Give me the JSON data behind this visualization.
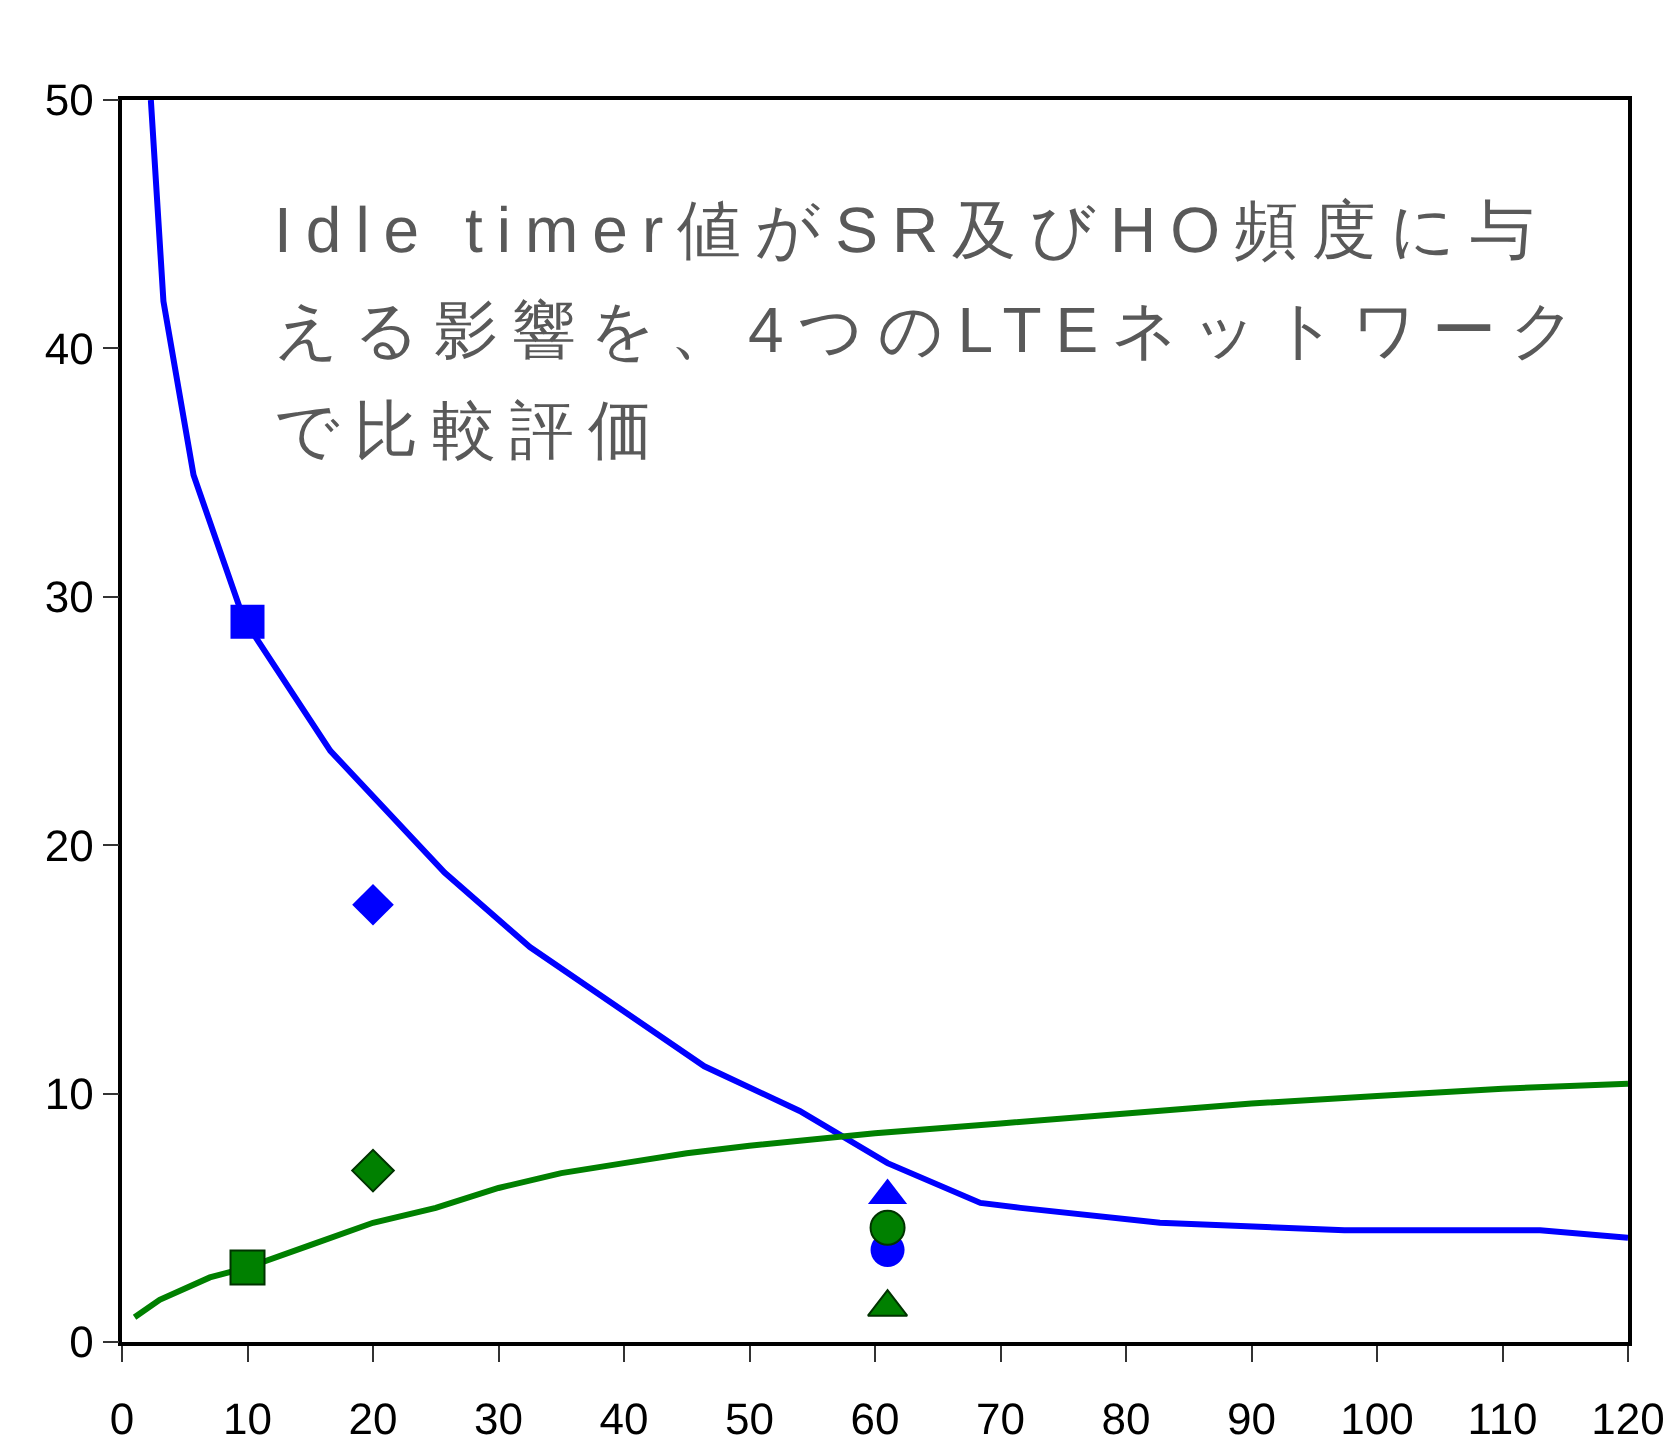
{
  "chart_data": {
    "type": "line",
    "annotations": [
      "Idle timer値がSR及びHO頻度に与える影響を、4つのLTEネットワークで比較評価"
    ],
    "xlim": [
      0,
      120
    ],
    "xticks": [
      0,
      10,
      20,
      30,
      40,
      50,
      60,
      70,
      80,
      90,
      100,
      110,
      120
    ],
    "ylim": [
      0,
      50
    ],
    "yticks": [
      0,
      10,
      20,
      30,
      40,
      50
    ],
    "grid": false,
    "series": [
      {
        "color": "#0000ff",
        "marker": "none",
        "x": [
          2.3,
          3.3,
          5.7,
          9.7,
          16.6,
          25.7,
          32.5,
          46.4,
          54,
          61,
          68.4,
          71.6,
          82.7,
          97.4,
          113,
          120
        ],
        "values": [
          50,
          41.9,
          34.9,
          29.1,
          23.8,
          18.9,
          15.9,
          11.1,
          9.3,
          7.2,
          5.6,
          5.4,
          4.8,
          4.5,
          4.5,
          4.2
        ]
      },
      {
        "color": "#008000",
        "marker": "none",
        "x": [
          1,
          3,
          7,
          10,
          15,
          20,
          25,
          30,
          35,
          40,
          45,
          50,
          60,
          70,
          80,
          90,
          100,
          110,
          120
        ],
        "values": [
          1.0,
          1.7,
          2.6,
          3.0,
          3.9,
          4.8,
          5.4,
          6.2,
          6.8,
          7.2,
          7.6,
          7.9,
          8.4,
          8.8,
          9.2,
          9.6,
          9.9,
          10.2,
          10.4
        ]
      },
      {
        "type": "scatter",
        "color": "#0000ff",
        "marker": "square",
        "x": [
          10
        ],
        "values": [
          29
        ]
      },
      {
        "type": "scatter",
        "color": "#008000",
        "marker": "square",
        "x": [
          10
        ],
        "values": [
          3.0
        ]
      },
      {
        "type": "scatter",
        "color": "#0000ff",
        "marker": "diamond",
        "x": [
          20
        ],
        "values": [
          17.6
        ]
      },
      {
        "type": "scatter",
        "color": "#008000",
        "marker": "diamond",
        "x": [
          20
        ],
        "values": [
          6.9
        ]
      },
      {
        "type": "scatter",
        "color": "#0000ff",
        "marker": "triangle",
        "x": [
          61
        ],
        "values": [
          5.9
        ]
      },
      {
        "type": "scatter",
        "color": "#0000ff",
        "marker": "circle",
        "x": [
          61
        ],
        "values": [
          3.7
        ]
      },
      {
        "type": "scatter",
        "color": "#008000",
        "marker": "circle",
        "x": [
          61
        ],
        "values": [
          4.6
        ]
      },
      {
        "type": "scatter",
        "color": "#008000",
        "marker": "triangle",
        "x": [
          61
        ],
        "values": [
          1.4
        ]
      }
    ]
  }
}
